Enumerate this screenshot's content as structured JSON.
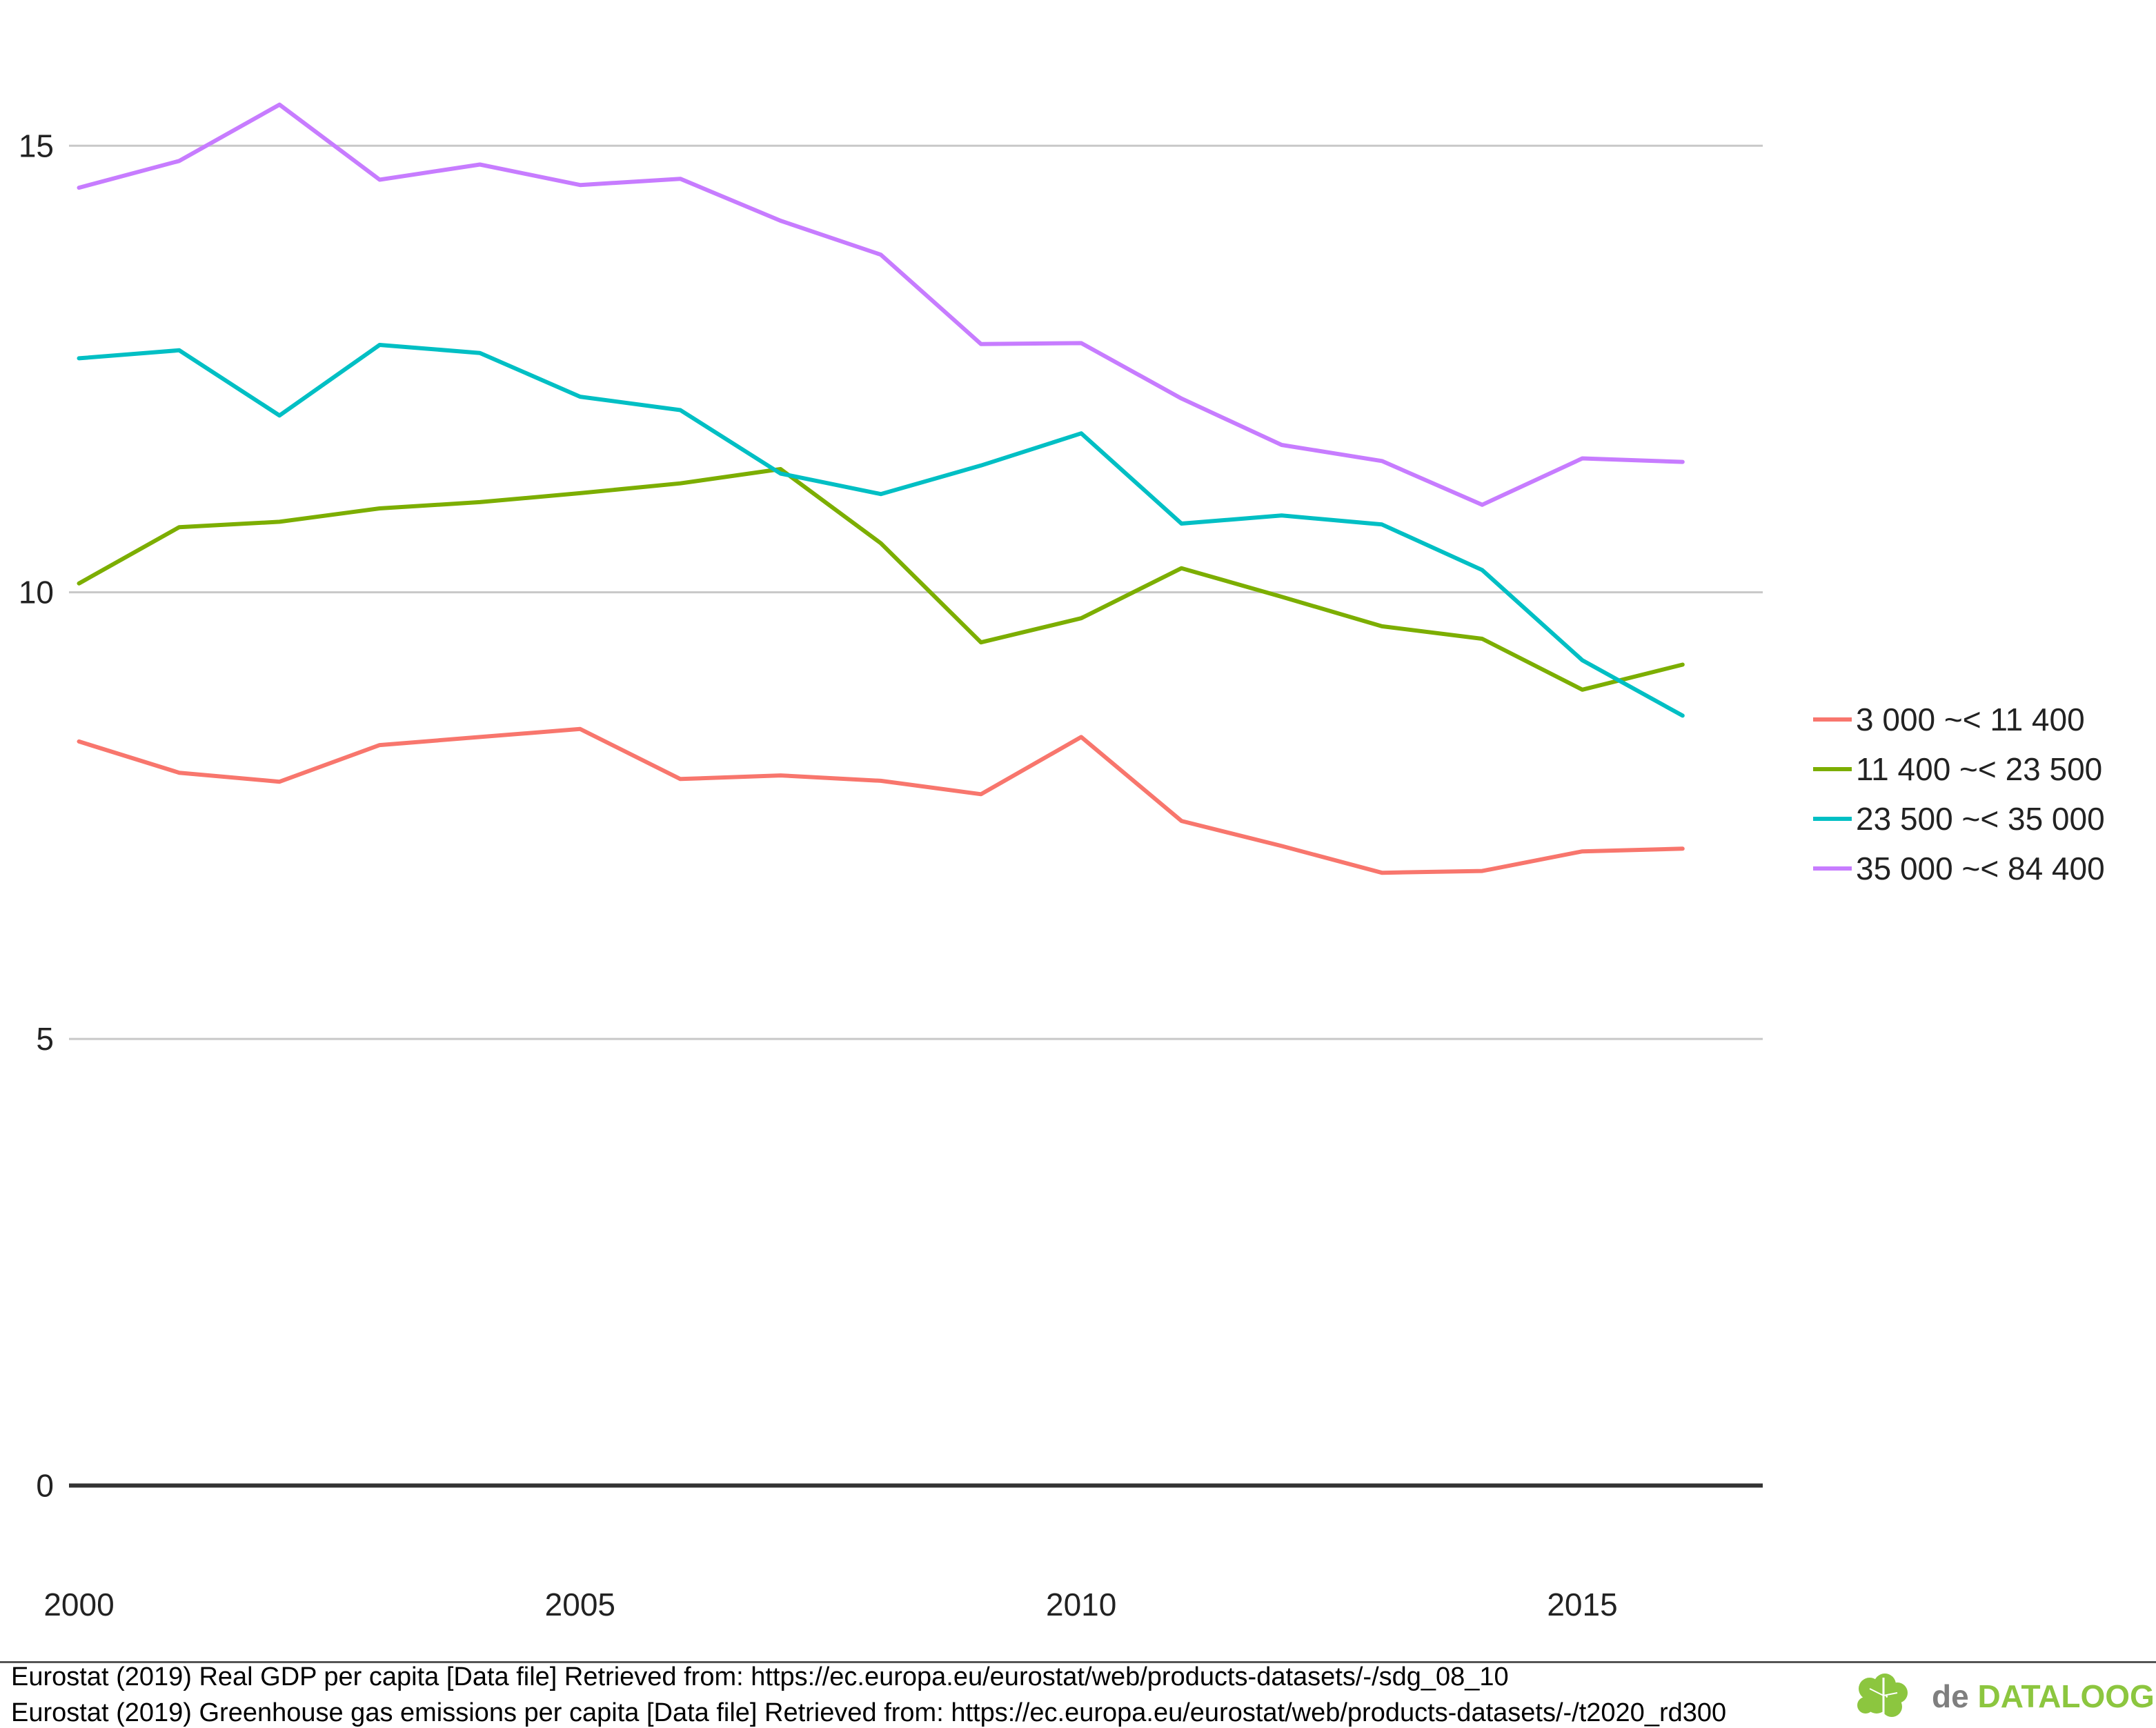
{
  "chart_data": {
    "type": "line",
    "title": "",
    "xlabel": "",
    "ylabel": "",
    "x": [
      2000,
      2001,
      2002,
      2003,
      2004,
      2005,
      2006,
      2007,
      2008,
      2009,
      2010,
      2011,
      2012,
      2013,
      2014,
      2015,
      2016
    ],
    "xlim": [
      1999.9,
      2016.8
    ],
    "ylim": [
      -0.9,
      16.4
    ],
    "xticks": [
      2000,
      2005,
      2010,
      2015
    ],
    "yticks": [
      0,
      5,
      10,
      15
    ],
    "grid": "horizontal",
    "legend_position": "right",
    "series": [
      {
        "name": "3 000 ~< 11 400",
        "color": "#f8766d",
        "values": [
          8.33,
          7.98,
          7.88,
          8.29,
          8.38,
          8.47,
          7.91,
          7.95,
          7.89,
          7.74,
          8.38,
          7.44,
          7.16,
          6.86,
          6.88,
          7.1,
          7.13
        ]
      },
      {
        "name": "11 400 ~< 23 500",
        "color": "#7cae00",
        "values": [
          10.1,
          10.73,
          10.79,
          10.94,
          11.01,
          11.11,
          11.22,
          11.38,
          10.55,
          9.44,
          9.71,
          10.27,
          9.95,
          9.62,
          9.48,
          8.91,
          9.19
        ]
      },
      {
        "name": "23 500 ~< 35 000",
        "color": "#00bfc4",
        "values": [
          12.62,
          12.71,
          11.98,
          12.77,
          12.68,
          12.19,
          12.04,
          11.33,
          11.1,
          11.42,
          11.78,
          10.77,
          10.86,
          10.76,
          10.25,
          9.24,
          8.62
        ]
      },
      {
        "name": "35 000 ~< 84 400",
        "color": "#c77cff",
        "values": [
          14.53,
          14.83,
          15.46,
          14.62,
          14.79,
          14.56,
          14.63,
          14.16,
          13.78,
          12.78,
          12.79,
          12.17,
          11.65,
          11.47,
          10.98,
          11.5,
          11.46
        ]
      }
    ]
  },
  "sources": {
    "line1": "Eurostat (2019) Real GDP per capita [Data file] Retrieved from: https://ec.europa.eu/eurostat/web/products-datasets/-/sdg_08_10",
    "line2": "Eurostat (2019) Greenhouse gas emissions per capita [Data file] Retrieved from: https://ec.europa.eu/eurostat/web/products-datasets/-/t2020_rd300"
  },
  "logo": {
    "prefix": "de ",
    "brand": "DATALOOG",
    "icon": "brain-icon"
  }
}
